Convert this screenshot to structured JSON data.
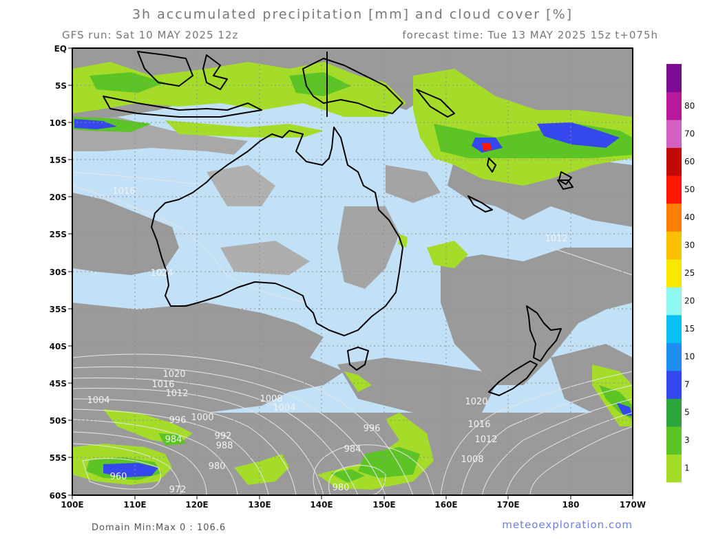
{
  "header": {
    "title": "3h accumulated precipitation [mm] and cloud cover [%]",
    "gfs_run": "GFS run: Sat 10 MAY 2025 12z",
    "forecast_time": "forecast time: Tue 13 MAY 2025 15z  t+075h"
  },
  "footer": {
    "domain_minmax": "Domain Min:Max 0 : 106.6",
    "credit": "meteoexploration.com"
  },
  "map": {
    "lat_labels": [
      "EQ",
      "5S",
      "10S",
      "15S",
      "20S",
      "25S",
      "30S",
      "35S",
      "40S",
      "45S",
      "50S",
      "55S",
      "60S"
    ],
    "lon_labels": [
      "100E",
      "110E",
      "120E",
      "130E",
      "140E",
      "150E",
      "160E",
      "170E",
      "180",
      "170W"
    ],
    "isobar_labels": [
      "1024",
      "1020",
      "1016",
      "1012",
      "1008",
      "1004",
      "1000",
      "996",
      "992",
      "988",
      "984",
      "980",
      "972",
      "960",
      "1020",
      "1016",
      "1012",
      "1008",
      "1004",
      "996",
      "984",
      "980",
      "1016",
      "1012"
    ],
    "colors": {
      "ocean": "#c2e0f6",
      "cloud": "#9a9a9a",
      "coast": "#000000",
      "isobar": "#e6e6e6"
    }
  },
  "colorbar": {
    "labels": [
      "1",
      "3",
      "5",
      "7",
      "10",
      "15",
      "20",
      "25",
      "30",
      "40",
      "50",
      "60",
      "70",
      "80"
    ],
    "colors": [
      "#a5dc2a",
      "#5cc425",
      "#2aa63d",
      "#3548ee",
      "#1e8ff0",
      "#08c0f5",
      "#8cf8f0",
      "#f8e800",
      "#fbbe00",
      "#ff7e05",
      "#ff1800",
      "#c20a04",
      "#d461c0",
      "#b8189e",
      "#7c0a92"
    ]
  }
}
